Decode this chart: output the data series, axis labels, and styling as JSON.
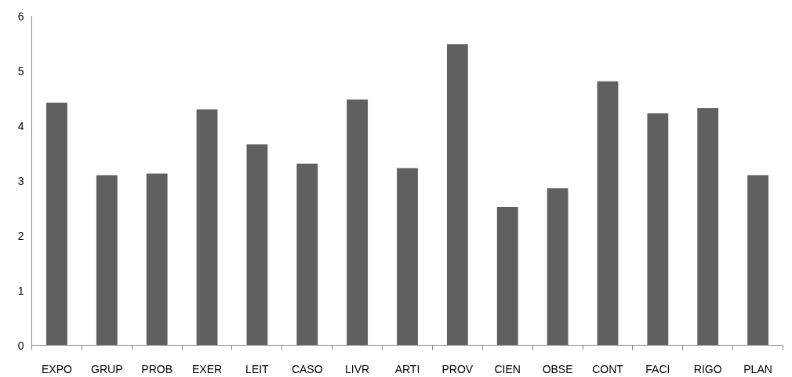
{
  "chart_data": {
    "type": "bar",
    "categories": [
      "EXPO",
      "GRUP",
      "PROB",
      "EXER",
      "LEIT",
      "CASO",
      "LIVR",
      "ARTI",
      "PROV",
      "CIEN",
      "OBSE",
      "CONT",
      "FACI",
      "RIGO",
      "PLAN"
    ],
    "values": [
      4.42,
      3.1,
      3.13,
      4.3,
      3.66,
      3.31,
      4.48,
      3.23,
      5.49,
      2.52,
      2.86,
      4.81,
      4.23,
      4.32,
      3.1
    ],
    "color": "#606060",
    "ylim": [
      0,
      6
    ],
    "yticks": [
      0,
      1,
      2,
      3,
      4,
      5,
      6
    ],
    "grid": false
  }
}
